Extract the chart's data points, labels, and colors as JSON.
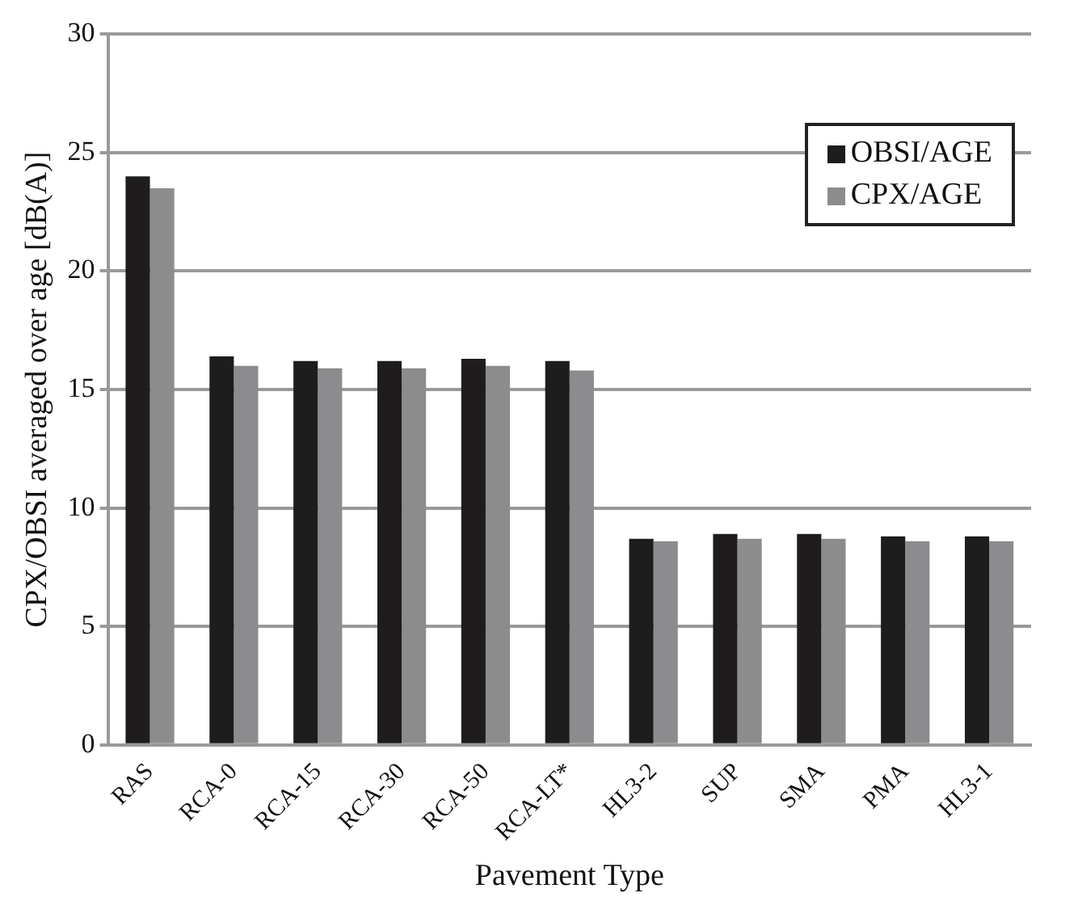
{
  "chart_data": {
    "type": "bar",
    "xlabel": "Pavement Type",
    "ylabel": "CPX/OBSI averaged over age [dB(A)]",
    "categories": [
      "RAS",
      "RCA-0",
      "RCA-15",
      "RCA-30",
      "RCA-50",
      "RCA-LT*",
      "HL3-2",
      "SUP",
      "SMA",
      "PMA",
      "HL3-1"
    ],
    "series": [
      {
        "name": "OBSI/AGE",
        "color": "#1e1c1d",
        "values": [
          24.0,
          16.4,
          16.2,
          16.2,
          16.3,
          16.2,
          8.7,
          8.9,
          8.9,
          8.8,
          8.8
        ]
      },
      {
        "name": "CPX/AGE",
        "color": "#8c8c8e",
        "values": [
          23.5,
          16.0,
          15.9,
          15.9,
          16.0,
          15.8,
          8.6,
          8.7,
          8.7,
          8.6,
          8.6
        ]
      }
    ],
    "ylim": [
      0,
      30
    ],
    "yticks": [
      0,
      5,
      10,
      15,
      20,
      25,
      30
    ],
    "grid": "y",
    "legend": "top right"
  }
}
